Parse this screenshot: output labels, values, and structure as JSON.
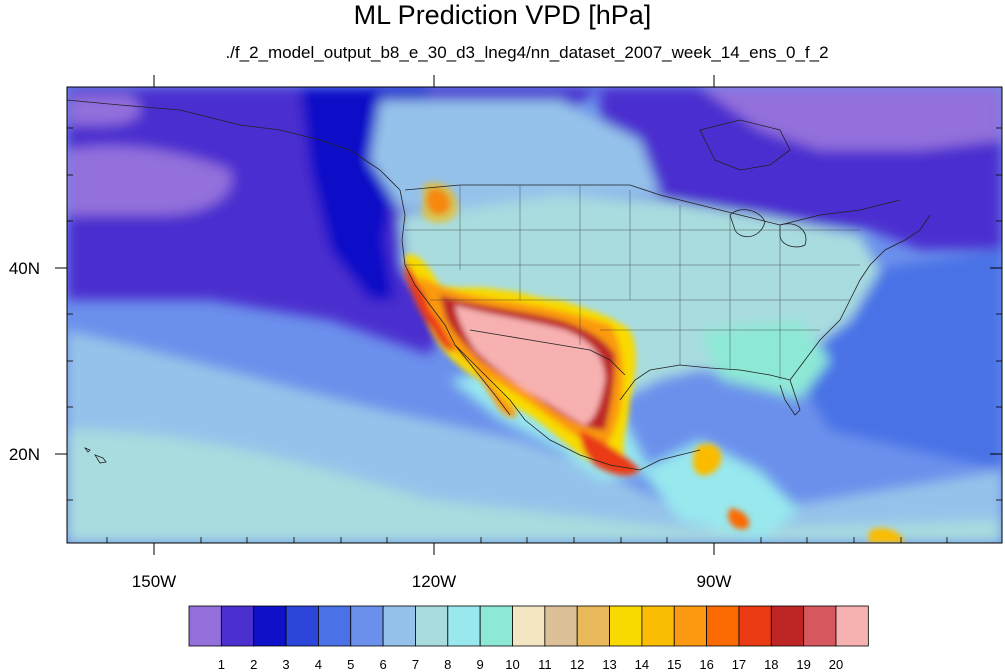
{
  "title": "ML Prediction VPD [hPa]",
  "subtitle": "./f_2_model_output_b8_e_30_d3_lneg4/nn_dataset_2007_week_14_ens_0_f_2",
  "chart_data": {
    "type": "heatmap",
    "variable": "VPD",
    "unit": "hPa",
    "x_tick_labels": [
      "150W",
      "120W",
      "90W"
    ],
    "y_tick_labels": [
      "40N",
      "20N"
    ],
    "colorbar": {
      "labels": [
        "1",
        "2",
        "3",
        "4",
        "5",
        "6",
        "7",
        "8",
        "9",
        "10",
        "11",
        "12",
        "13",
        "14",
        "15",
        "16",
        "17",
        "18",
        "19",
        "20"
      ],
      "colors": [
        "#9370db",
        "#4b2fcf",
        "#1010c8",
        "#2b46d9",
        "#4a72e6",
        "#6b90ec",
        "#95c2ea",
        "#a9dcdf",
        "#98e8ee",
        "#8ee8d6",
        "#f3e6c3",
        "#dcc097",
        "#e8b85a",
        "#f8da00",
        "#fbbc04",
        "#fb9a10",
        "#fb6a00",
        "#ea3b14",
        "#bd2525",
        "#d6585e",
        "#f7b1b1"
      ]
    }
  }
}
